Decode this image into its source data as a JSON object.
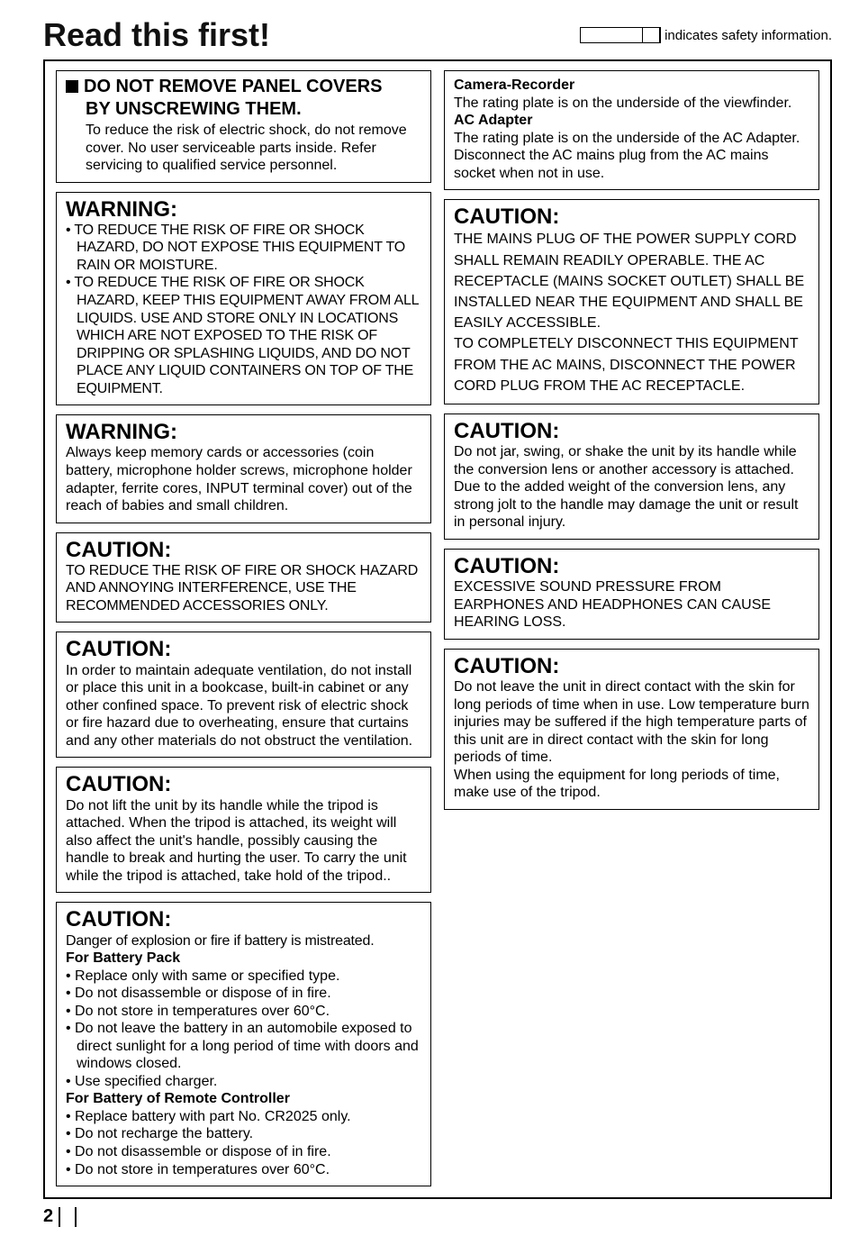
{
  "header": {
    "title": "Read this first!",
    "safety_label": " indicates safety information."
  },
  "left": [
    {
      "type": "panel",
      "square_heading_line1": "DO NOT REMOVE PANEL COVERS",
      "square_heading_line2": "BY UNSCREWING THEM.",
      "body": "To reduce the risk of electric shock, do not remove cover. No user serviceable parts inside. Refer servicing to qualified service personnel."
    },
    {
      "type": "warning",
      "heading": "WARNING:",
      "bullets": [
        "TO REDUCE THE RISK OF FIRE OR SHOCK HAZARD, DO NOT EXPOSE THIS EQUIPMENT TO RAIN OR MOISTURE.",
        "TO REDUCE THE RISK OF FIRE OR SHOCK HAZARD, KEEP THIS EQUIPMENT AWAY FROM ALL LIQUIDS. USE AND STORE ONLY IN LOCATIONS WHICH ARE NOT EXPOSED TO THE RISK OF DRIPPING OR SPLASHING LIQUIDS, AND DO NOT PLACE ANY LIQUID CONTAINERS ON TOP OF THE EQUIPMENT."
      ]
    },
    {
      "type": "warning",
      "heading": "WARNING:",
      "body": "Always keep memory cards or accessories (coin battery, microphone holder screws, microphone holder adapter, ferrite cores, INPUT terminal cover) out of the reach of babies and small children."
    },
    {
      "type": "caution",
      "heading": "CAUTION:",
      "body": "TO REDUCE THE RISK OF FIRE OR SHOCK HAZARD AND ANNOYING INTERFERENCE, USE THE RECOMMENDED ACCESSORIES ONLY."
    },
    {
      "type": "caution",
      "heading": "CAUTION:",
      "body": "In order to maintain adequate ventilation, do not install or place this unit in a bookcase, built-in cabinet or any other confined space. To prevent risk of electric shock or fire hazard due to overheating, ensure that curtains and any other materials do not obstruct the ventilation."
    },
    {
      "type": "caution",
      "heading": "CAUTION:",
      "body": "Do not lift the unit by its handle while the tripod is attached. When the tripod is attached, its weight will also affect the unit's handle, possibly causing the handle to break and hurting the user. To carry the unit while the tripod is attached, take hold of the tripod.."
    },
    {
      "type": "caution_battery",
      "heading": "CAUTION:",
      "lead": "Danger of explosion or fire if battery is mistreated.",
      "sub1": "For Battery Pack",
      "bullets1": [
        "Replace only with same or specified type.",
        "Do not disassemble or dispose of in fire.",
        "Do not store in temperatures over 60°C.",
        "Do not leave the battery in an automobile exposed to direct sunlight for a long period of time with doors and windows closed.",
        "Use specified charger."
      ],
      "sub2": "For Battery of Remote Controller",
      "bullets2": [
        "Replace battery with part No. CR2025 only.",
        "Do not recharge the battery.",
        "Do not disassemble or dispose of in fire.",
        "Do not store in temperatures over 60°C."
      ]
    }
  ],
  "right": [
    {
      "type": "ratings",
      "h1": "Camera-Recorder",
      "b1": "The rating plate is on the underside of the viewfinder.",
      "h2": "AC Adapter",
      "b2": "The rating plate is on the underside of the AC Adapter.",
      "b3": "Disconnect the AC mains plug from the AC mains socket when not in use."
    },
    {
      "type": "caution",
      "heading": "CAUTION:",
      "body": "THE MAINS PLUG OF THE POWER SUPPLY CORD SHALL REMAIN READILY OPERABLE. THE AC RECEPTACLE (MAINS SOCKET OUTLET) SHALL BE INSTALLED NEAR THE EQUIPMENT AND SHALL BE EASILY ACCESSIBLE.",
      "body2": "TO COMPLETELY DISCONNECT THIS EQUIPMENT FROM THE AC MAINS, DISCONNECT THE POWER CORD PLUG FROM THE AC RECEPTACLE."
    },
    {
      "type": "caution",
      "heading": "CAUTION:",
      "body": "Do not jar, swing, or shake the unit by its handle while the conversion lens or another accessory is attached.",
      "body2": "Due to the added weight of the conversion lens, any strong jolt to the handle may damage the unit or result in personal injury."
    },
    {
      "type": "caution",
      "heading": "CAUTION:",
      "body": "EXCESSIVE SOUND PRESSURE FROM EARPHONES AND HEADPHONES CAN CAUSE HEARING LOSS."
    },
    {
      "type": "caution",
      "heading": "CAUTION:",
      "body": "Do not leave the unit in direct contact with the skin for long periods of time when in use. Low temperature burn injuries may be suffered if the high temperature parts of this unit are in direct contact with the skin for long periods of time.",
      "body2": "When using the equipment for long periods of time, make use of the tripod."
    }
  ],
  "page_number": "2"
}
